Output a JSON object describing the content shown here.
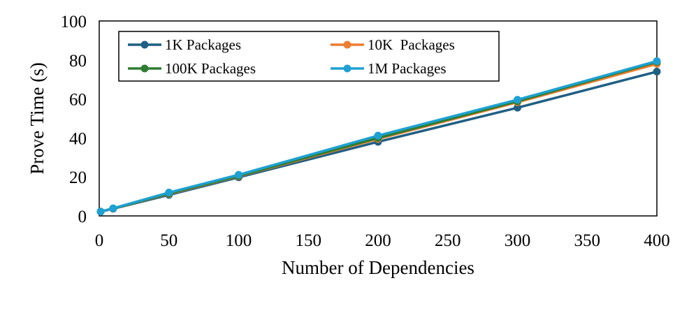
{
  "chart_data": {
    "type": "line",
    "title": "",
    "xlabel": "Number of Dependencies",
    "ylabel": "Prove Time (s)",
    "xlim": [
      0,
      400
    ],
    "ylim": [
      0,
      100
    ],
    "xticks": [
      0,
      50,
      100,
      150,
      200,
      250,
      300,
      350,
      400
    ],
    "yticks": [
      0,
      20,
      40,
      60,
      80,
      100
    ],
    "grid": false,
    "legend_position": "top",
    "x": [
      1,
      10,
      50,
      100,
      200,
      300,
      400
    ],
    "series": [
      {
        "name": "1K Packages",
        "color": "#1f5f84",
        "values": [
          2.2,
          3.7,
          10.8,
          19.8,
          38.0,
          55.5,
          74.0
        ]
      },
      {
        "name": "10K  Packages",
        "color": "#ed7d31",
        "values": [
          2.2,
          3.8,
          11.3,
          20.3,
          39.5,
          58.3,
          78.0
        ]
      },
      {
        "name": "100K Packages",
        "color": "#2e7d32",
        "values": [
          2.2,
          3.8,
          11.5,
          20.5,
          40.0,
          58.8,
          79.0
        ]
      },
      {
        "name": "1M Packages",
        "color": "#1ea1d2",
        "values": [
          2.2,
          3.9,
          12.0,
          21.1,
          41.2,
          59.6,
          79.4
        ]
      }
    ]
  }
}
